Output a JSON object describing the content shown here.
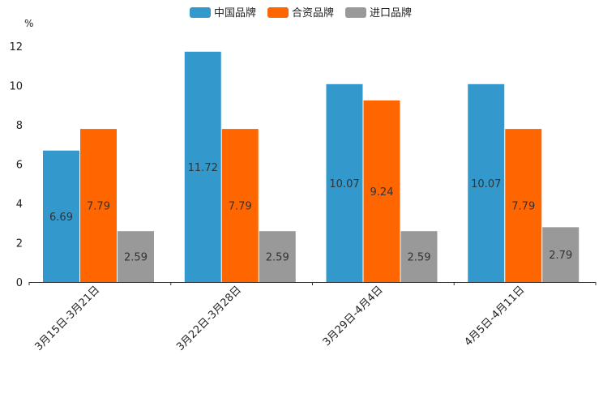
{
  "chart_data": {
    "type": "bar",
    "title": "",
    "xlabel": "",
    "ylabel": "%",
    "ylim": [
      0,
      12
    ],
    "yticks": [
      0,
      2,
      4,
      6,
      8,
      10,
      12
    ],
    "grid": false,
    "legend_position": "top",
    "categories": [
      "3月15日-3月21日",
      "3月22日-3月28日",
      "3月29日-4月4日",
      "4月5日-4月11日"
    ],
    "series": [
      {
        "name": "中国品牌",
        "color": "#3399cc",
        "values": [
          6.69,
          11.72,
          10.07,
          10.07
        ],
        "labels": [
          "6.69",
          "11.72",
          "10.07",
          "10.07"
        ]
      },
      {
        "name": "合资品牌",
        "color": "#ff6600",
        "values": [
          7.79,
          7.79,
          9.24,
          7.79
        ],
        "labels": [
          "7.79",
          "7.79",
          "9.24",
          "7.79"
        ]
      },
      {
        "name": "进口品牌",
        "color": "#999999",
        "values": [
          2.59,
          2.59,
          2.59,
          2.79
        ],
        "labels": [
          "2.59",
          "2.59",
          "2.59",
          "2.79"
        ]
      }
    ]
  }
}
